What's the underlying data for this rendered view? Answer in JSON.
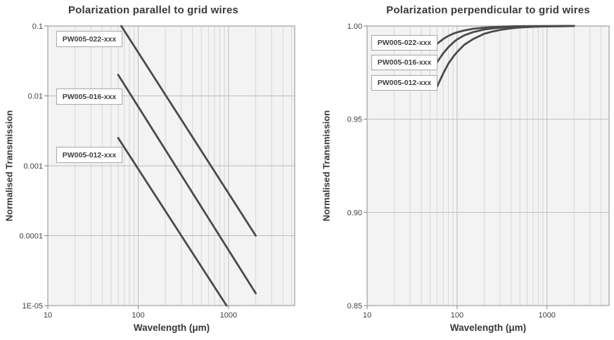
{
  "chart_data": [
    {
      "type": "line",
      "title": "Polarization parallel to grid wires",
      "xlabel": "Wavelength (μm)",
      "ylabel": "Normalised Transmission",
      "x_scale": "log",
      "y_scale": "log",
      "xlim": [
        10,
        5400
      ],
      "ylim": [
        1e-05,
        0.1
      ],
      "x_ticks": {
        "values": [
          10,
          100,
          1000
        ],
        "labels": [
          "10",
          "100",
          "1000"
        ]
      },
      "x_minor": [
        20,
        30,
        40,
        50,
        60,
        70,
        80,
        90,
        200,
        300,
        400,
        500,
        600,
        700,
        800,
        900,
        2000,
        3000,
        4000,
        5000
      ],
      "y_ticks": {
        "values": [
          0.1,
          0.01,
          0.001,
          0.0001,
          1e-05
        ],
        "labels": [
          "0.1",
          "0.01",
          "0.001",
          "0.0001",
          "1E-05"
        ]
      },
      "y_grid": [
        0.01,
        0.001,
        0.0001
      ],
      "grid": "on",
      "legend_position": "boxed-labels-on-plot",
      "line_color": "#4b4b4b",
      "plot_bg": "#f3f3f3",
      "series": [
        {
          "name": "PW005-022-xxx",
          "points": [
            [
              65,
              0.1
            ],
            [
              2000,
              0.0001
            ]
          ]
        },
        {
          "name": "PW005-016-xxx",
          "points": [
            [
              60,
              0.02
            ],
            [
              2000,
              1.5e-05
            ]
          ]
        },
        {
          "name": "PW005-012-xxx",
          "points": [
            [
              60,
              0.0025
            ],
            [
              950,
              1e-05
            ]
          ]
        }
      ]
    },
    {
      "type": "line",
      "title": "Polarization perpendicular to grid wires",
      "xlabel": "Wavelength (μm)",
      "ylabel": "Normalised Transmission",
      "x_scale": "log",
      "y_scale": "linear",
      "xlim": [
        10,
        4900
      ],
      "ylim": [
        0.85,
        1.0
      ],
      "x_ticks": {
        "values": [
          10,
          100,
          1000
        ],
        "labels": [
          "10",
          "100",
          "1000"
        ]
      },
      "x_minor": [
        20,
        30,
        40,
        50,
        60,
        70,
        80,
        90,
        200,
        300,
        400,
        500,
        600,
        700,
        800,
        900,
        2000,
        3000,
        4000
      ],
      "y_ticks": {
        "values": [
          1.0,
          0.95,
          0.9,
          0.85
        ],
        "labels": [
          "1.00",
          "0.95",
          "0.90",
          "0.85"
        ]
      },
      "y_grid": [
        0.95,
        0.9
      ],
      "grid": "on",
      "legend_position": "boxed-labels-on-plot",
      "line_color": "#4b4b4b",
      "plot_bg": "#f3f3f3",
      "series": [
        {
          "name": "PW005-022-xxx",
          "points": [
            [
              60,
              0.9905
            ],
            [
              70,
              0.993
            ],
            [
              80,
              0.9947
            ],
            [
              90,
              0.9958
            ],
            [
              100,
              0.9966
            ],
            [
              120,
              0.9976
            ],
            [
              150,
              0.9985
            ],
            [
              200,
              0.9991
            ],
            [
              250,
              0.9994
            ],
            [
              300,
              0.9996
            ],
            [
              400,
              0.9998
            ],
            [
              500,
              0.99987
            ],
            [
              700,
              0.99993
            ],
            [
              1000,
              0.99997
            ],
            [
              1500,
              0.99999
            ],
            [
              2000,
              1.0
            ]
          ]
        },
        {
          "name": "PW005-016-xxx",
          "points": [
            [
              60,
              0.9806
            ],
            [
              70,
              0.9853
            ],
            [
              80,
              0.9886
            ],
            [
              90,
              0.991
            ],
            [
              100,
              0.9928
            ],
            [
              120,
              0.995
            ],
            [
              150,
              0.9967
            ],
            [
              200,
              0.9981
            ],
            [
              250,
              0.9987
            ],
            [
              300,
              0.9991
            ],
            [
              400,
              0.9995
            ],
            [
              500,
              0.9997
            ],
            [
              700,
              0.99983
            ],
            [
              1000,
              0.9999
            ],
            [
              1500,
              0.99996
            ],
            [
              2000,
              1.0
            ]
          ]
        },
        {
          "name": "PW005-012-xxx",
          "points": [
            [
              60,
              0.9675
            ],
            [
              70,
              0.9745
            ],
            [
              80,
              0.9798
            ],
            [
              90,
              0.9833
            ],
            [
              100,
              0.986
            ],
            [
              120,
              0.9899
            ],
            [
              150,
              0.9929
            ],
            [
              200,
              0.9958
            ],
            [
              250,
              0.9971
            ],
            [
              300,
              0.9979
            ],
            [
              400,
              0.9988
            ],
            [
              500,
              0.9992
            ],
            [
              700,
              0.9996
            ],
            [
              1000,
              0.9998
            ],
            [
              1500,
              0.9999
            ],
            [
              2000,
              1.0
            ]
          ]
        }
      ]
    }
  ],
  "style": {
    "grid_minor_color": "#d6d6d6",
    "grid_major_color": "#bdbdbd",
    "border_color": "#a0a0a0",
    "tick_color": "#7f7f7f",
    "tick_label_color": "#404040"
  }
}
